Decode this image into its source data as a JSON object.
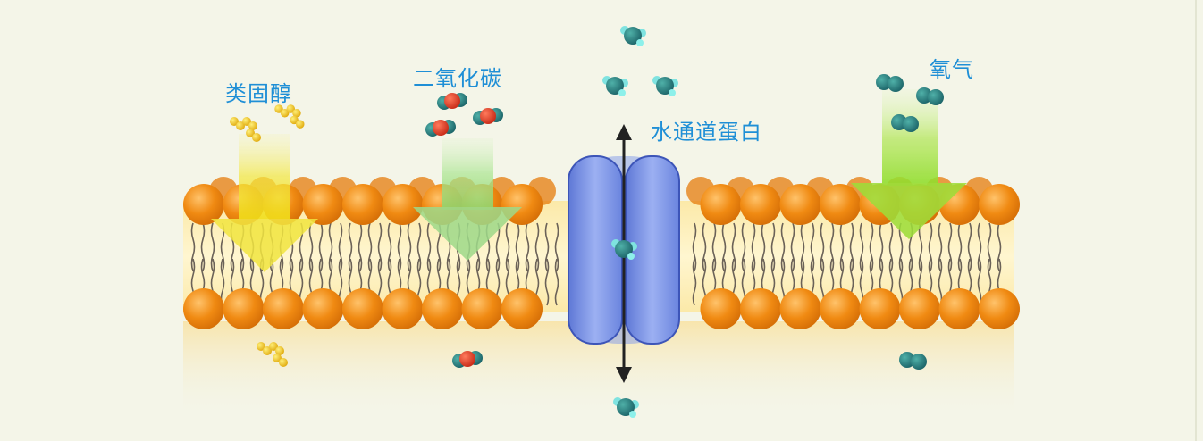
{
  "labels": {
    "steroid": "类固醇",
    "co2": "二氧化碳",
    "aquaporin": "水通道蛋白",
    "oxygen": "氧气"
  },
  "colors": {
    "background": "#f4f5e8",
    "lipid_head": "#f08a12",
    "lipid_tail": "#6b6258",
    "membrane_band": "#f8ecbf",
    "aquaporin": "#7b94e8",
    "steroid_molecule": "#f2c21a",
    "oxygen_atom": "#e8402a",
    "carbon_atom": "#2a7d7d",
    "hydrogen_atom": "#6fe0e0",
    "label_text": "#1f8fd6",
    "arrow_yellow": "#f2e640",
    "arrow_green_light": "#9fe07f",
    "arrow_green": "#8fdc2a"
  },
  "icons": [
    "steroid-molecule-icon",
    "co2-molecule-icon",
    "water-molecule-icon",
    "oxygen-molecule-icon",
    "double-arrow-icon"
  ]
}
